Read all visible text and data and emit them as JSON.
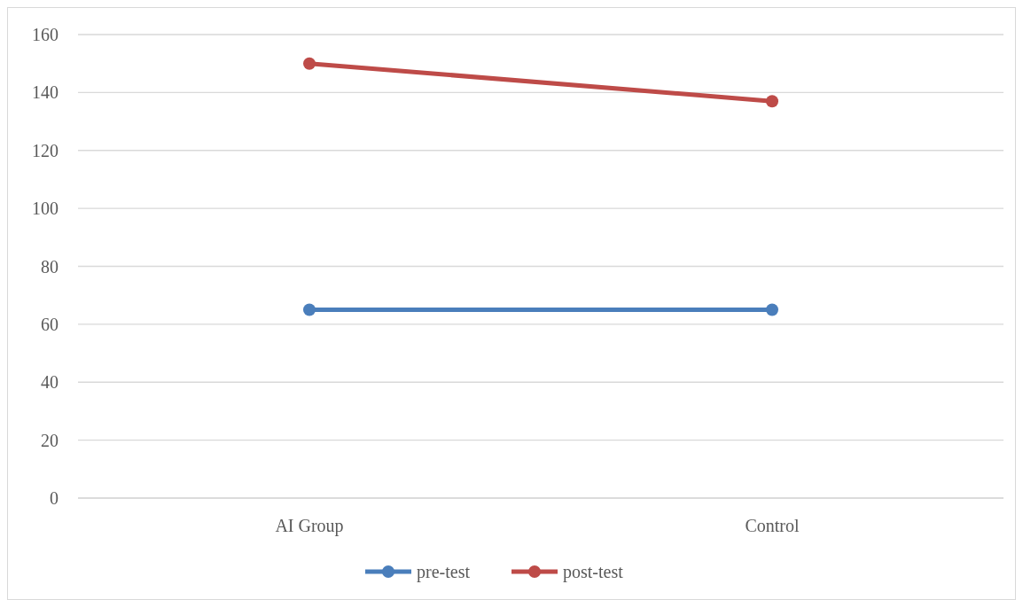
{
  "chart_data": {
    "type": "line",
    "categories": [
      "AI Group",
      "Control"
    ],
    "series": [
      {
        "name": "pre-test",
        "color": "#4a7ebb",
        "values": [
          65,
          65
        ]
      },
      {
        "name": "post-test",
        "color": "#be4b48",
        "values": [
          150,
          137
        ]
      }
    ],
    "ylim": [
      0,
      160
    ],
    "yticks": [
      0,
      20,
      40,
      60,
      80,
      100,
      120,
      140,
      160
    ],
    "grid": "y",
    "legend": "bottom",
    "marker": "circle",
    "line_style": "solid"
  }
}
